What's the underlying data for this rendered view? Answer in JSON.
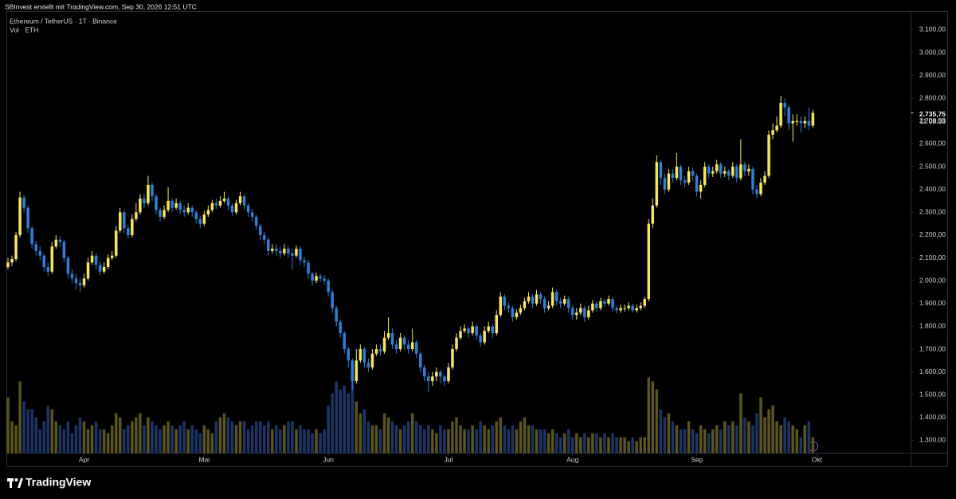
{
  "chart_data": {
    "type": "candlestick",
    "attribution": "SBInvest erstellt mit TradingView.com, Sep 30, 2026 12:51 UTC",
    "title": "Ethereum / TetherUS · 1T · Binance",
    "subtitle": "Vol · ETH",
    "brand": "TradingView",
    "last_price": {
      "value": 2735.75,
      "label": "2.735,75"
    },
    "countdown": "11:08:33",
    "up_color": "#f7e463",
    "down_color": "#2f7fd6",
    "volume_up_color": "#5a5420",
    "volume_down_color": "#1d3566",
    "grid": false,
    "xlim": [
      -0.3,
      225.5
    ],
    "xticks": [
      {
        "value": 19,
        "label": "Apr"
      },
      {
        "value": 49,
        "label": "Mai"
      },
      {
        "value": 80,
        "label": "Jun"
      },
      {
        "value": 110,
        "label": "Jul"
      },
      {
        "value": 141,
        "label": "Aug"
      },
      {
        "value": 172,
        "label": "Sep"
      },
      {
        "value": 202,
        "label": "Okt"
      }
    ],
    "ylim": [
      1244,
      3180
    ],
    "yticks": [
      {
        "value": 1300,
        "label": "1.300,00"
      },
      {
        "value": 1400,
        "label": "1.400,00"
      },
      {
        "value": 1500,
        "label": "1.500,00"
      },
      {
        "value": 1600,
        "label": "1.600,00"
      },
      {
        "value": 1700,
        "label": "1.700,00"
      },
      {
        "value": 1800,
        "label": "1.800,00"
      },
      {
        "value": 1900,
        "label": "1.900,00"
      },
      {
        "value": 2000,
        "label": "2.000,00"
      },
      {
        "value": 2100,
        "label": "2.100,00"
      },
      {
        "value": 2200,
        "label": "2.200,00"
      },
      {
        "value": 2300,
        "label": "2.300,00"
      },
      {
        "value": 2400,
        "label": "2.400,00"
      },
      {
        "value": 2500,
        "label": "2.500,00"
      },
      {
        "value": 2600,
        "label": "2.600,00"
      },
      {
        "value": 2700,
        "label": "2.700,00"
      },
      {
        "value": 2800,
        "label": "2.800,00"
      },
      {
        "value": 2900,
        "label": "2.900,00"
      },
      {
        "value": 3000,
        "label": "3.000,00"
      },
      {
        "value": 3100,
        "label": "3.100,00"
      }
    ],
    "open": [
      2060,
      2080,
      2095,
      2200,
      2365,
      2320,
      2230,
      2160,
      2130,
      2110,
      2060,
      2040,
      2150,
      2180,
      2170,
      2100,
      2030,
      2010,
      1990,
      1980,
      2010,
      2080,
      2110,
      2070,
      2040,
      2060,
      2100,
      2110,
      2220,
      2300,
      2230,
      2200,
      2270,
      2300,
      2360,
      2340,
      2420,
      2370,
      2310,
      2280,
      2310,
      2350,
      2320,
      2340,
      2310,
      2300,
      2320,
      2300,
      2270,
      2250,
      2290,
      2310,
      2340,
      2330,
      2350,
      2360,
      2330,
      2300,
      2340,
      2370,
      2330,
      2300,
      2280,
      2240,
      2200,
      2180,
      2130,
      2140,
      2130,
      2120,
      2140,
      2120,
      2110,
      2140,
      2090,
      2080,
      2030,
      2000,
      2020,
      2010,
      2000,
      1950,
      1880,
      1820,
      1770,
      1700,
      1650,
      1560,
      1650,
      1700,
      1640,
      1620,
      1680,
      1700,
      1690,
      1750,
      1770,
      1720,
      1700,
      1750,
      1720,
      1700,
      1730,
      1680,
      1620,
      1580,
      1560,
      1580,
      1600,
      1580,
      1560,
      1620,
      1700,
      1750,
      1780,
      1790,
      1770,
      1800,
      1760,
      1730,
      1780,
      1800,
      1770,
      1850,
      1930,
      1890,
      1880,
      1840,
      1860,
      1880,
      1910,
      1930,
      1900,
      1940,
      1920,
      1880,
      1890,
      1950,
      1910,
      1900,
      1920,
      1880,
      1850,
      1860,
      1880,
      1840,
      1870,
      1900,
      1880,
      1910,
      1900,
      1920,
      1880,
      1870,
      1880,
      1880,
      1890,
      1870,
      1880,
      1890,
      1920,
      2250,
      2330,
      2520,
      2450,
      2400,
      2470,
      2450,
      2500,
      2440,
      2430,
      2480,
      2460,
      2390,
      2420,
      2500,
      2470,
      2480,
      2510,
      2470,
      2480,
      2460,
      2500,
      2450,
      2510,
      2480,
      2490,
      2400,
      2380,
      2430,
      2460,
      2640,
      2660,
      2680,
      2780,
      2760,
      2690,
      2700,
      2700,
      2690,
      2700,
      2680
    ],
    "high": [
      2100,
      2110,
      2215,
      2390,
      2375,
      2330,
      2240,
      2175,
      2150,
      2120,
      2080,
      2170,
      2200,
      2195,
      2180,
      2110,
      2050,
      2030,
      2010,
      2030,
      2100,
      2130,
      2120,
      2085,
      2080,
      2115,
      2130,
      2240,
      2320,
      2310,
      2245,
      2290,
      2340,
      2380,
      2380,
      2460,
      2430,
      2380,
      2320,
      2330,
      2410,
      2360,
      2360,
      2350,
      2330,
      2340,
      2330,
      2310,
      2285,
      2305,
      2330,
      2355,
      2360,
      2370,
      2390,
      2370,
      2340,
      2355,
      2390,
      2380,
      2340,
      2315,
      2290,
      2250,
      2215,
      2190,
      2160,
      2160,
      2150,
      2160,
      2150,
      2140,
      2155,
      2150,
      2105,
      2090,
      2040,
      2035,
      2030,
      2025,
      2010,
      1960,
      1890,
      1830,
      1780,
      1710,
      1660,
      1700,
      1720,
      1710,
      1660,
      1700,
      1720,
      1720,
      1780,
      1840,
      1790,
      1740,
      1770,
      1760,
      1740,
      1790,
      1740,
      1690,
      1630,
      1600,
      1600,
      1620,
      1610,
      1590,
      1640,
      1720,
      1770,
      1800,
      1810,
      1800,
      1820,
      1810,
      1770,
      1800,
      1820,
      1810,
      1870,
      1950,
      1940,
      1905,
      1890,
      1875,
      1895,
      1925,
      1950,
      1940,
      1960,
      1950,
      1930,
      1910,
      1970,
      1960,
      1925,
      1935,
      1930,
      1890,
      1880,
      1900,
      1890,
      1890,
      1915,
      1910,
      1925,
      1920,
      1935,
      1930,
      1890,
      1895,
      1895,
      1905,
      1900,
      1895,
      1905,
      1930,
      2270,
      2360,
      2550,
      2530,
      2470,
      2490,
      2490,
      2560,
      2510,
      2460,
      2500,
      2495,
      2470,
      2440,
      2520,
      2510,
      2500,
      2530,
      2520,
      2500,
      2490,
      2520,
      2510,
      2620,
      2520,
      2510,
      2500,
      2420,
      2450,
      2480,
      2660,
      2690,
      2720,
      2810,
      2800,
      2770,
      2730,
      2730,
      2720,
      2720,
      2760,
      2750
    ],
    "low": [
      2050,
      2065,
      2085,
      2190,
      2300,
      2210,
      2140,
      2110,
      2090,
      2040,
      2020,
      2030,
      2140,
      2150,
      2080,
      2010,
      1990,
      1960,
      1950,
      1970,
      2000,
      2070,
      2050,
      2025,
      2030,
      2050,
      2090,
      2100,
      2210,
      2210,
      2185,
      2190,
      2260,
      2290,
      2320,
      2330,
      2350,
      2290,
      2260,
      2270,
      2300,
      2300,
      2310,
      2290,
      2280,
      2290,
      2280,
      2250,
      2230,
      2240,
      2280,
      2300,
      2315,
      2320,
      2340,
      2310,
      2285,
      2290,
      2330,
      2310,
      2280,
      2260,
      2220,
      2180,
      2160,
      2110,
      2120,
      2110,
      2100,
      2110,
      2100,
      2050,
      2100,
      2070,
      2060,
      2010,
      1980,
      1990,
      1995,
      1985,
      1930,
      1860,
      1800,
      1750,
      1680,
      1620,
      1520,
      1550,
      1640,
      1620,
      1600,
      1610,
      1670,
      1670,
      1680,
      1740,
      1700,
      1680,
      1690,
      1700,
      1680,
      1690,
      1660,
      1600,
      1560,
      1510,
      1540,
      1560,
      1550,
      1540,
      1550,
      1610,
      1690,
      1740,
      1770,
      1750,
      1760,
      1740,
      1710,
      1720,
      1770,
      1750,
      1760,
      1840,
      1870,
      1860,
      1820,
      1830,
      1850,
      1870,
      1900,
      1880,
      1890,
      1900,
      1860,
      1870,
      1880,
      1890,
      1880,
      1890,
      1860,
      1830,
      1830,
      1850,
      1820,
      1830,
      1860,
      1865,
      1870,
      1885,
      1890,
      1865,
      1855,
      1860,
      1865,
      1870,
      1860,
      1860,
      1870,
      1880,
      1910,
      2230,
      2320,
      2420,
      2380,
      2390,
      2430,
      2440,
      2420,
      2410,
      2420,
      2440,
      2370,
      2360,
      2410,
      2450,
      2455,
      2470,
      2450,
      2455,
      2440,
      2450,
      2430,
      2440,
      2460,
      2460,
      2380,
      2360,
      2370,
      2420,
      2450,
      2620,
      2650,
      2670,
      2720,
      2660,
      2610,
      2680,
      2650,
      2670,
      2660,
      2670
    ],
    "close": [
      2080,
      2095,
      2200,
      2365,
      2320,
      2230,
      2160,
      2130,
      2110,
      2060,
      2040,
      2150,
      2180,
      2170,
      2100,
      2030,
      2010,
      1990,
      1980,
      2010,
      2080,
      2110,
      2070,
      2040,
      2060,
      2100,
      2110,
      2220,
      2300,
      2230,
      2200,
      2270,
      2300,
      2360,
      2340,
      2420,
      2370,
      2310,
      2280,
      2310,
      2350,
      2320,
      2340,
      2310,
      2300,
      2320,
      2300,
      2270,
      2250,
      2290,
      2310,
      2340,
      2330,
      2350,
      2360,
      2330,
      2300,
      2340,
      2370,
      2330,
      2300,
      2280,
      2240,
      2200,
      2180,
      2130,
      2140,
      2130,
      2120,
      2140,
      2120,
      2110,
      2140,
      2090,
      2080,
      2030,
      2000,
      2020,
      2010,
      2000,
      1950,
      1880,
      1820,
      1770,
      1700,
      1650,
      1560,
      1650,
      1700,
      1640,
      1620,
      1680,
      1700,
      1690,
      1750,
      1770,
      1720,
      1700,
      1750,
      1720,
      1700,
      1730,
      1680,
      1620,
      1580,
      1560,
      1580,
      1600,
      1580,
      1560,
      1620,
      1700,
      1750,
      1780,
      1790,
      1770,
      1800,
      1760,
      1730,
      1780,
      1800,
      1770,
      1850,
      1930,
      1890,
      1880,
      1840,
      1860,
      1880,
      1910,
      1930,
      1900,
      1940,
      1920,
      1880,
      1890,
      1950,
      1910,
      1900,
      1920,
      1880,
      1850,
      1860,
      1880,
      1840,
      1870,
      1900,
      1880,
      1910,
      1900,
      1920,
      1880,
      1870,
      1880,
      1880,
      1890,
      1870,
      1880,
      1890,
      1920,
      2250,
      2330,
      2520,
      2450,
      2400,
      2470,
      2450,
      2500,
      2440,
      2430,
      2480,
      2460,
      2390,
      2420,
      2500,
      2470,
      2480,
      2510,
      2470,
      2480,
      2460,
      2500,
      2450,
      2510,
      2480,
      2490,
      2400,
      2380,
      2430,
      2460,
      2640,
      2660,
      2680,
      2780,
      2760,
      2690,
      2700,
      2700,
      2690,
      2700,
      2680,
      2735.75
    ],
    "volume": [
      70,
      40,
      35,
      90,
      65,
      55,
      55,
      45,
      30,
      40,
      60,
      55,
      40,
      35,
      30,
      40,
      25,
      35,
      45,
      40,
      30,
      35,
      40,
      30,
      30,
      25,
      35,
      50,
      45,
      30,
      35,
      40,
      45,
      50,
      35,
      45,
      40,
      35,
      30,
      35,
      40,
      35,
      30,
      35,
      40,
      30,
      35,
      30,
      25,
      35,
      30,
      25,
      40,
      45,
      50,
      45,
      40,
      35,
      40,
      40,
      30,
      35,
      40,
      40,
      35,
      40,
      30,
      35,
      30,
      35,
      40,
      40,
      30,
      35,
      30,
      30,
      25,
      30,
      25,
      30,
      60,
      75,
      90,
      80,
      85,
      75,
      90,
      65,
      50,
      55,
      40,
      35,
      35,
      30,
      50,
      45,
      40,
      35,
      30,
      35,
      40,
      50,
      40,
      35,
      30,
      35,
      30,
      25,
      35,
      30,
      30,
      40,
      45,
      35,
      30,
      30,
      35,
      30,
      40,
      35,
      30,
      35,
      40,
      45,
      35,
      30,
      35,
      30,
      40,
      45,
      35,
      35,
      30,
      30,
      30,
      25,
      30,
      25,
      20,
      25,
      30,
      20,
      25,
      20,
      25,
      20,
      25,
      25,
      20,
      25,
      20,
      25,
      20,
      20,
      20,
      15,
      20,
      15,
      20,
      20,
      95,
      90,
      80,
      55,
      45,
      50,
      40,
      35,
      30,
      30,
      40,
      30,
      25,
      35,
      30,
      25,
      30,
      35,
      30,
      40,
      35,
      40,
      35,
      75,
      45,
      40,
      35,
      50,
      70,
      45,
      55,
      60,
      40,
      35,
      45,
      40,
      35,
      30,
      20,
      35,
      40,
      20
    ]
  }
}
